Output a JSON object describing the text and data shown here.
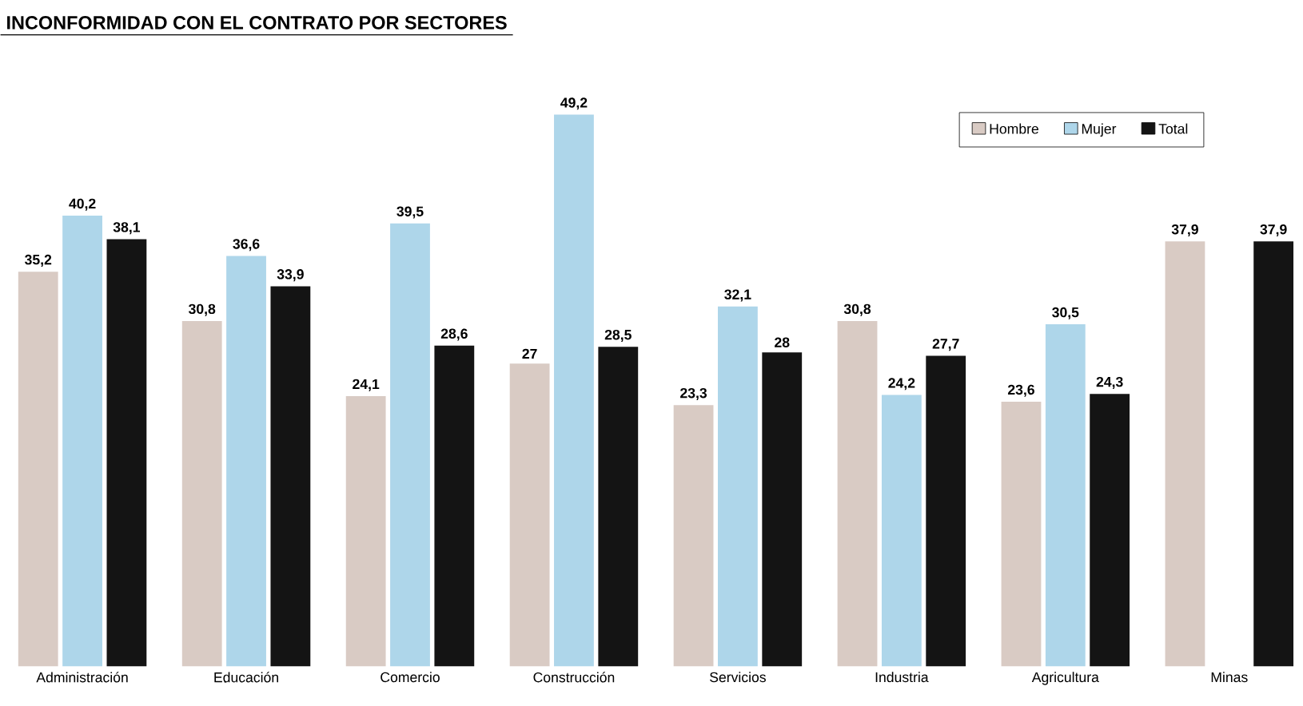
{
  "chart_data": {
    "type": "bar",
    "title": "INCONFORMIDAD CON EL CONTRATO POR SECTORES",
    "categories": [
      "Administración",
      "Educación",
      "Comercio",
      "Construcción",
      "Servicios",
      "Industria",
      "Agricultura",
      "Minas"
    ],
    "series": [
      {
        "name": "Hombre",
        "color": "#d9cbc4",
        "values": [
          35.2,
          30.8,
          24.1,
          27,
          23.3,
          30.8,
          23.6,
          37.9
        ],
        "value_labels": [
          "35,2",
          "30,8",
          "24,1",
          "27",
          "23,3",
          "30,8",
          "23,6",
          "37,9"
        ]
      },
      {
        "name": "Mujer",
        "color": "#aed6ea",
        "values": [
          40.2,
          36.6,
          39.5,
          49.2,
          32.1,
          24.2,
          30.5,
          null
        ],
        "value_labels": [
          "40,2",
          "36,6",
          "39,5",
          "49,2",
          "32,1",
          "24,2",
          "30,5",
          null
        ]
      },
      {
        "name": "Total",
        "color": "#141414",
        "values": [
          38.1,
          33.9,
          28.6,
          28.5,
          28,
          27.7,
          24.3,
          37.9
        ],
        "value_labels": [
          "38,1",
          "33,9",
          "28,6",
          "28,5",
          "28",
          "27,7",
          "24,3",
          "37,9"
        ]
      }
    ],
    "legend": "top right"
  }
}
